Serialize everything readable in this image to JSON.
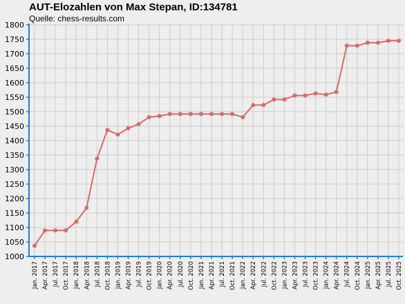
{
  "title": "AUT-Elozahlen von Max Stepan, ID:134781",
  "subtitle": "Quelle: chess-results.com",
  "colors": {
    "line": "#d96a6a",
    "axis": "#1e7fd6",
    "grid": "#cccccc",
    "background": "#eeeeee"
  },
  "chart_data": {
    "type": "line",
    "title": "AUT-Elozahlen von Max Stepan, ID:134781",
    "xlabel": "",
    "ylabel": "",
    "ylim": [
      1000,
      1800
    ],
    "yticks": [
      1000,
      1050,
      1100,
      1150,
      1200,
      1250,
      1300,
      1350,
      1400,
      1450,
      1500,
      1550,
      1600,
      1650,
      1700,
      1750,
      1800
    ],
    "grid": true,
    "x": [
      "Jan. 2017",
      "Apr. 2017",
      "Jul. 2017",
      "Oct. 2017",
      "Jan. 2018",
      "Apr. 2018",
      "Jul. 2018",
      "Oct. 2018",
      "Jan. 2019",
      "Apr. 2019",
      "Jul. 2019",
      "Oct. 2019",
      "Jan. 2020",
      "Apr. 2020",
      "Jul. 2020",
      "Oct. 2020",
      "Jan. 2021",
      "Apr. 2021",
      "Jul. 2021",
      "Oct. 2021",
      "Jan. 2022",
      "Apr. 2022",
      "Jul. 2022",
      "Oct. 2022",
      "Jan. 2023",
      "Apr. 2023",
      "Jul. 2023",
      "Oct. 2023",
      "Jan. 2024",
      "Apr. 2024",
      "Jul. 2024",
      "Oct. 2024",
      "Jan. 2025",
      "Apr. 2025",
      "Jul. 2025",
      "Oct. 2025"
    ],
    "series": [
      {
        "values": [
          1037,
          1090,
          1090,
          1090,
          1120,
          1168,
          1338,
          1437,
          1421,
          1443,
          1457,
          1481,
          1485,
          1492,
          1492,
          1492,
          1492,
          1492,
          1492,
          1492,
          1481,
          1523,
          1523,
          1542,
          1542,
          1556,
          1556,
          1563,
          1559,
          1568,
          1728,
          1728,
          1738,
          1738,
          1745,
          1745
        ]
      }
    ]
  }
}
